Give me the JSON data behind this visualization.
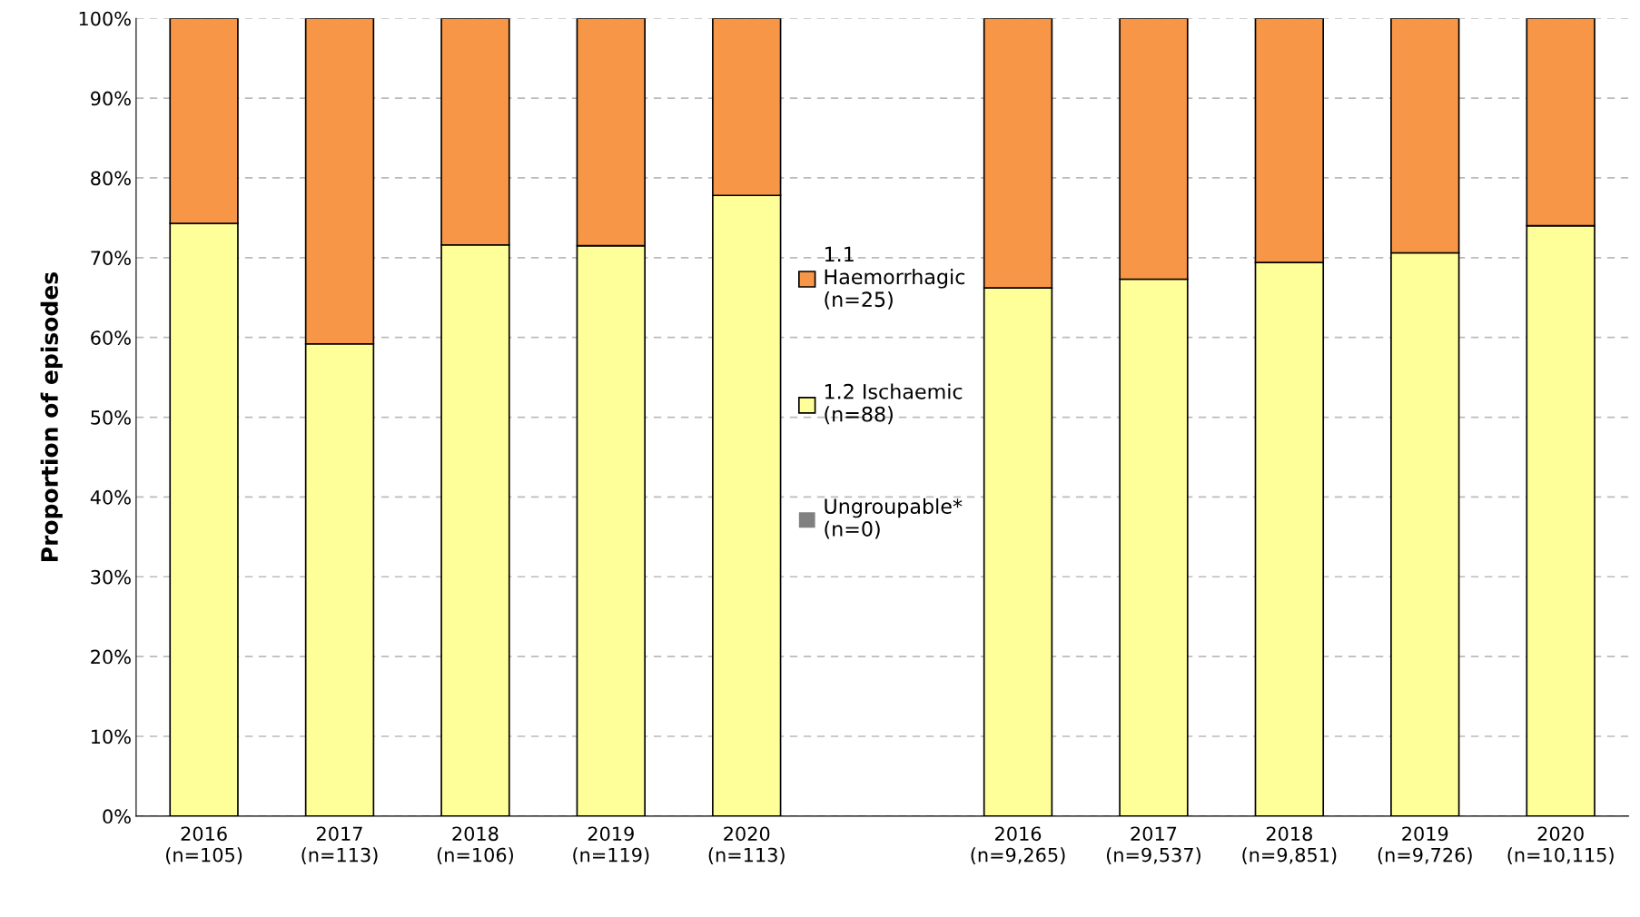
{
  "chart_data": {
    "type": "bar",
    "stacked": true,
    "ylabel": "Proportion of episodes",
    "categories": [
      "2016\n(n=105)",
      "2017\n(n=113)",
      "2018\n(n=106)",
      "2019\n(n=119)",
      "2020\n(n=113)",
      null,
      "2016\n(n=9,265)",
      "2017\n(n=9,537)",
      "2018\n(n=9,851)",
      "2019\n(n=9,726)",
      "2020\n(n=10,115)"
    ],
    "series": [
      {
        "name": "Ungroupable*\n(n=0)",
        "color": "#808080",
        "values": [
          0,
          0,
          0,
          0,
          0,
          null,
          0,
          0,
          0,
          0,
          0
        ]
      },
      {
        "name": "1.2 Ischaemic\n(n=88)",
        "color": "#ffff99",
        "values": [
          74.3,
          59.2,
          71.6,
          71.5,
          77.8,
          null,
          66.2,
          67.3,
          69.4,
          70.6,
          74.0
        ]
      },
      {
        "name": "1.1\nHaemorrhagic\n(n=25)",
        "color": "#f79646",
        "values": [
          25.7,
          40.8,
          28.4,
          28.5,
          22.2,
          null,
          33.8,
          32.7,
          30.6,
          29.4,
          26.0
        ]
      }
    ],
    "ylim": [
      0,
      100
    ],
    "yticks": [
      {
        "value": 0,
        "label": "0%"
      },
      {
        "value": 10,
        "label": "10%"
      },
      {
        "value": 20,
        "label": "20%"
      },
      {
        "value": 30,
        "label": "30%"
      },
      {
        "value": 40,
        "label": "40%"
      },
      {
        "value": 50,
        "label": "50%"
      },
      {
        "value": 60,
        "label": "60%"
      },
      {
        "value": 70,
        "label": "70%"
      },
      {
        "value": 80,
        "label": "80%"
      },
      {
        "value": 90,
        "label": "90%"
      },
      {
        "value": 100,
        "label": "100%"
      }
    ],
    "grid": "y",
    "legend": "center"
  }
}
